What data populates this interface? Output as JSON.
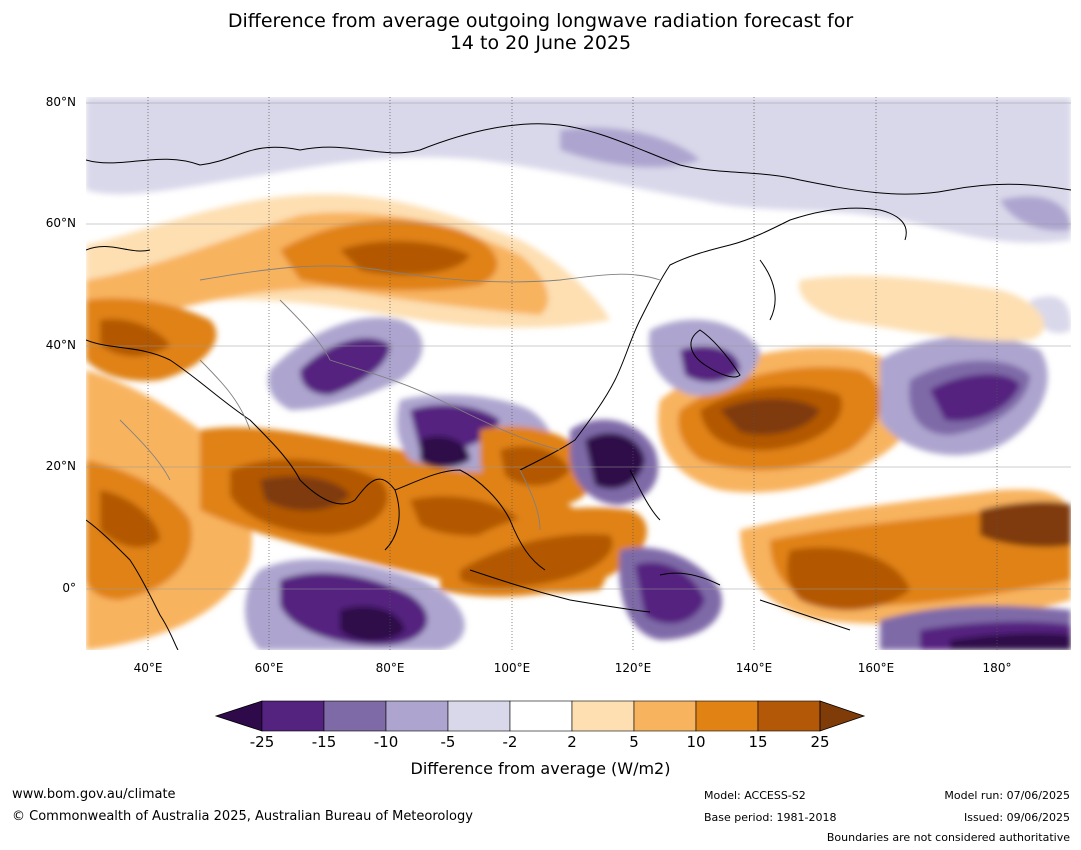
{
  "title_line1": "Difference from average outgoing longwave radiation forecast for",
  "title_line2": "14 to 20 June 2025",
  "map": {
    "lat_labels": [
      "80°N",
      "60°N",
      "40°N",
      "20°N",
      "0°"
    ],
    "lon_labels": [
      "40°E",
      "60°E",
      "80°E",
      "100°E",
      "120°E",
      "140°E",
      "160°E",
      "180°"
    ],
    "extent": {
      "lon_min": 30,
      "lon_max": 192,
      "lat_min": -10,
      "lat_max": 80
    }
  },
  "colorbar": {
    "ticks": [
      "-25",
      "-15",
      "-10",
      "-5",
      "-2",
      "2",
      "5",
      "10",
      "15",
      "25"
    ],
    "colors": [
      "#2e0a4a",
      "#54237f",
      "#7f6aa8",
      "#ada5cf",
      "#d9d8ea",
      "#ffffff",
      "#fddfb2",
      "#f8b35f",
      "#e08214",
      "#b35806",
      "#7f3b08"
    ],
    "label": "Difference from average (W/m2)"
  },
  "footer": {
    "url": "www.bom.gov.au/climate",
    "copyright": "© Commonwealth of Australia 2025, Australian Bureau of Meteorology",
    "model": "Model: ACCESS-S2",
    "base_period": "Base period: 1981-2018",
    "model_run": "Model run: 07/06/2025",
    "issued": "Issued: 09/06/2025",
    "disclaimer": "Boundaries are not considered authoritative"
  }
}
